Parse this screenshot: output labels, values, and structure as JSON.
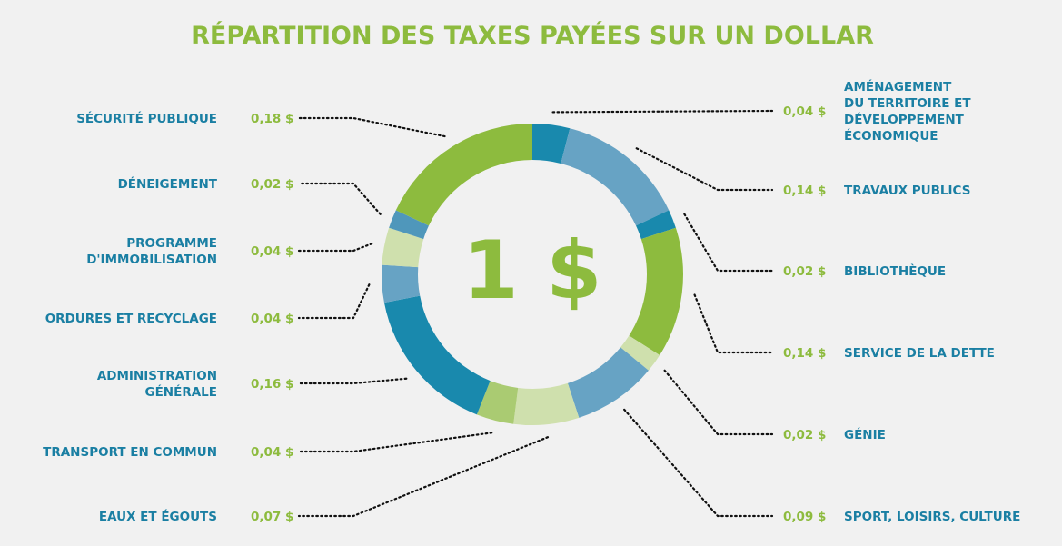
{
  "chart_data": {
    "type": "pie",
    "title": "RÉPARTITION DES TAXES PAYÉES SUR UN DOLLAR",
    "center_label": "1 $",
    "colors": {
      "green": "#8dbb3e",
      "blue_dark": "#1989ad",
      "blue_mid": "#67a3c4",
      "green_light": "#aacb72",
      "green_pale": "#cfe0ad"
    },
    "slices": [
      {
        "label": "AMÉNAGEMENT DU TERRITOIRE ET DÉVELOPPEMENT ÉCONOMIQUE",
        "label_lines": [
          "AMÉNAGEMENT",
          "DU TERRITOIRE ET",
          "DÉVELOPPEMENT",
          "ÉCONOMIQUE"
        ],
        "value": 0.04,
        "value_label": "0,04 $",
        "color": "#1989ad"
      },
      {
        "label": "TRAVAUX PUBLICS",
        "label_lines": [
          "TRAVAUX PUBLICS"
        ],
        "value": 0.14,
        "value_label": "0,14 $",
        "color": "#67a3c4"
      },
      {
        "label": "BIBLIOTHÈQUE",
        "label_lines": [
          "BIBLIOTHÈQUE"
        ],
        "value": 0.02,
        "value_label": "0,02 $",
        "color": "#1989ad"
      },
      {
        "label": "SERVICE DE LA DETTE",
        "label_lines": [
          "SERVICE DE LA DETTE"
        ],
        "value": 0.14,
        "value_label": "0,14 $",
        "color": "#8dbb3e"
      },
      {
        "label": "GÉNIE",
        "label_lines": [
          "GÉNIE"
        ],
        "value": 0.02,
        "value_label": "0,02 $",
        "color": "#cfe0ad"
      },
      {
        "label": "SPORT, LOISIRS, CULTURE",
        "label_lines": [
          "SPORT, LOISIRS, CULTURE"
        ],
        "value": 0.09,
        "value_label": "0,09 $",
        "color": "#67a3c4"
      },
      {
        "label": "EAUX ET ÉGOUTS",
        "label_lines": [
          "EAUX ET ÉGOUTS"
        ],
        "value": 0.07,
        "value_label": "0,07 $",
        "color": "#cfe0ad"
      },
      {
        "label": "TRANSPORT EN COMMUN",
        "label_lines": [
          "TRANSPORT EN COMMUN"
        ],
        "value": 0.04,
        "value_label": "0,04 $",
        "color": "#aacb72"
      },
      {
        "label": "ADMINISTRATION GÉNÉRALE",
        "label_lines": [
          "ADMINISTRATION",
          "GÉNÉRALE"
        ],
        "value": 0.16,
        "value_label": "0,16 $",
        "color": "#1989ad"
      },
      {
        "label": "ORDURES ET RECYCLAGE",
        "label_lines": [
          "ORDURES ET RECYCLAGE"
        ],
        "value": 0.04,
        "value_label": "0,04 $",
        "color": "#67a3c4"
      },
      {
        "label": "PROGRAMME D'IMMOBILISATION",
        "label_lines": [
          "PROGRAMME",
          "D'IMMOBILISATION"
        ],
        "value": 0.04,
        "value_label": "0,04 $",
        "color": "#cfe0ad"
      },
      {
        "label": "DÉNEIGEMENT",
        "label_lines": [
          "DÉNEIGEMENT"
        ],
        "value": 0.02,
        "value_label": "0,02 $",
        "color": "#4f97bb"
      },
      {
        "label": "SÉCURITÉ PUBLIQUE",
        "label_lines": [
          "SÉCURITÉ PUBLIQUE"
        ],
        "value": 0.18,
        "value_label": "0,18 $",
        "color": "#8dbb3e"
      }
    ]
  }
}
